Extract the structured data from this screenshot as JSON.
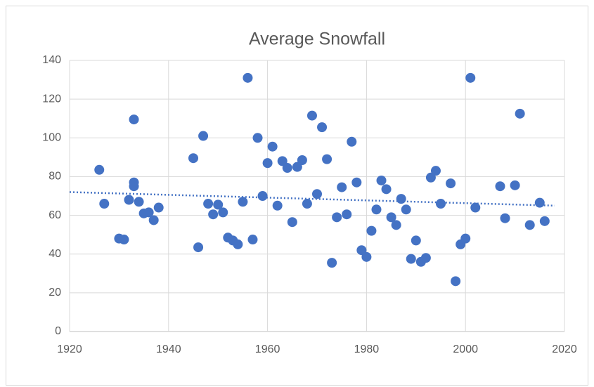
{
  "chart_data": {
    "type": "scatter",
    "title": "Average Snowfall",
    "color": "#4472c4",
    "x": [
      1926,
      1927,
      1930,
      1931,
      1932,
      1933,
      1933,
      1933,
      1934,
      1935,
      1936,
      1937,
      1938,
      1945,
      1946,
      1947,
      1948,
      1949,
      1950,
      1951,
      1952,
      1953,
      1954,
      1955,
      1956,
      1957,
      1958,
      1959,
      1960,
      1961,
      1962,
      1963,
      1964,
      1965,
      1966,
      1967,
      1968,
      1969,
      1970,
      1971,
      1972,
      1973,
      1974,
      1975,
      1976,
      1977,
      1978,
      1979,
      1980,
      1981,
      1982,
      1983,
      1984,
      1985,
      1986,
      1987,
      1988,
      1989,
      1990,
      1991,
      1992,
      1993,
      1994,
      1995,
      1997,
      1998,
      1999,
      2000,
      2001,
      2002,
      2007,
      2008,
      2010,
      2011,
      2013,
      2015,
      2016
    ],
    "values": [
      83.5,
      66,
      48,
      47.5,
      68,
      109.5,
      77,
      75,
      67,
      61,
      61.5,
      57.5,
      64,
      89.5,
      43.5,
      101,
      66,
      60.5,
      65.5,
      61.5,
      48.5,
      47,
      45,
      67,
      131,
      47.5,
      100,
      70,
      87,
      95.5,
      65,
      88,
      84.5,
      56.5,
      85,
      88.5,
      66,
      111.5,
      71,
      105.5,
      89,
      35.5,
      59,
      74.5,
      60.5,
      98,
      77,
      42,
      38.5,
      52,
      63,
      78,
      73.5,
      59,
      55,
      68.5,
      63,
      37.5,
      47,
      36,
      38,
      79.5,
      83,
      66,
      76.5,
      26,
      45,
      48,
      131,
      64,
      75,
      58.5,
      75.5,
      112.5,
      55,
      66.5,
      57
    ],
    "trendline": {
      "x": [
        1920,
        2018
      ],
      "values": [
        72,
        65
      ]
    },
    "xlim": [
      1920,
      2020
    ],
    "xticks": [
      1920,
      1940,
      1960,
      1980,
      2000,
      2020
    ],
    "ylim": [
      0,
      140
    ],
    "yticks": [
      0,
      20,
      40,
      60,
      80,
      100,
      120,
      140
    ],
    "grid": true
  }
}
